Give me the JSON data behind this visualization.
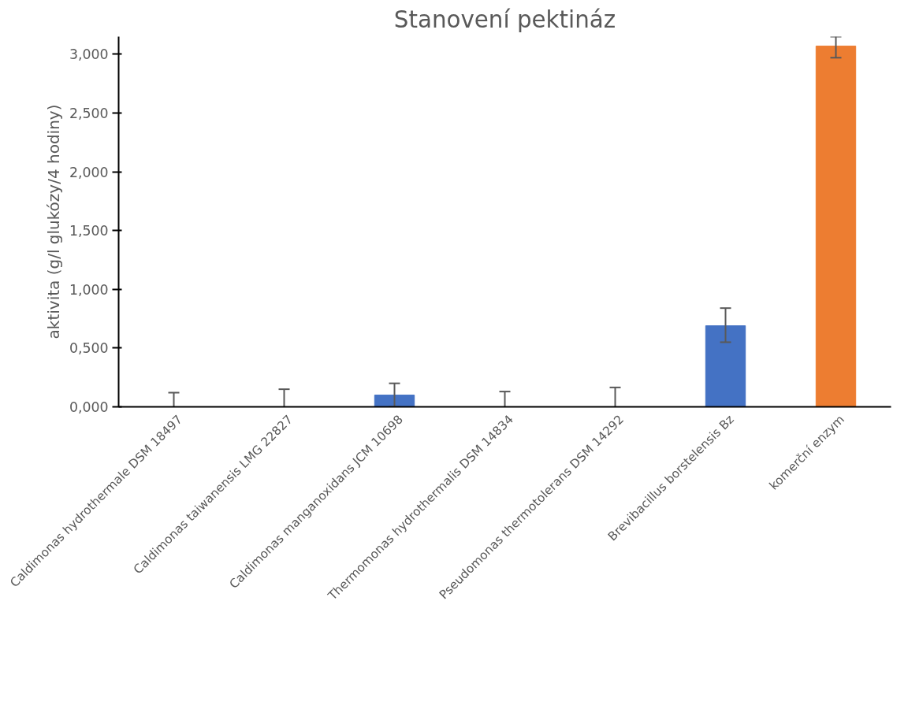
{
  "chart_data": {
    "type": "bar",
    "title": "Stanovení pektináz",
    "ylabel": "aktivita (g/l glukózy/4 hodiny)",
    "categories": [
      "Caldimonas hydrothermale DSM 18497",
      "Caldimonas taiwanensis LMG 22827",
      "Caldimonas manganoxidans JCM 10698",
      "Thermomonas hydrothermalis DSM 14834",
      "Pseudomonas thermotolerans DSM 14292",
      "Brevibacillus borstelensis Bz",
      "komerční enzym"
    ],
    "values": [
      0,
      0,
      0.1,
      0,
      0,
      0.69,
      3.07
    ],
    "colors": [
      "#4472c4",
      "#4472c4",
      "#4472c4",
      "#4472c4",
      "#4472c4",
      "#4472c4",
      "#ed7d31"
    ],
    "errors": [
      [
        0,
        0.12
      ],
      [
        0,
        0.15
      ],
      [
        0,
        0.2
      ],
      [
        0,
        0.13
      ],
      [
        0,
        0.165
      ],
      [
        0.55,
        0.84
      ],
      [
        2.97,
        3.15
      ]
    ],
    "ylim": [
      0,
      3.15
    ],
    "yticks": [
      {
        "value": 0,
        "label": "0,000"
      },
      {
        "value": 0.5,
        "label": "0,500"
      },
      {
        "value": 1,
        "label": "1,000"
      },
      {
        "value": 1.5,
        "label": "1,500"
      },
      {
        "value": 2,
        "label": "2,000"
      },
      {
        "value": 2.5,
        "label": "2,500"
      },
      {
        "value": 3,
        "label": "3,000"
      }
    ],
    "grid": false
  }
}
